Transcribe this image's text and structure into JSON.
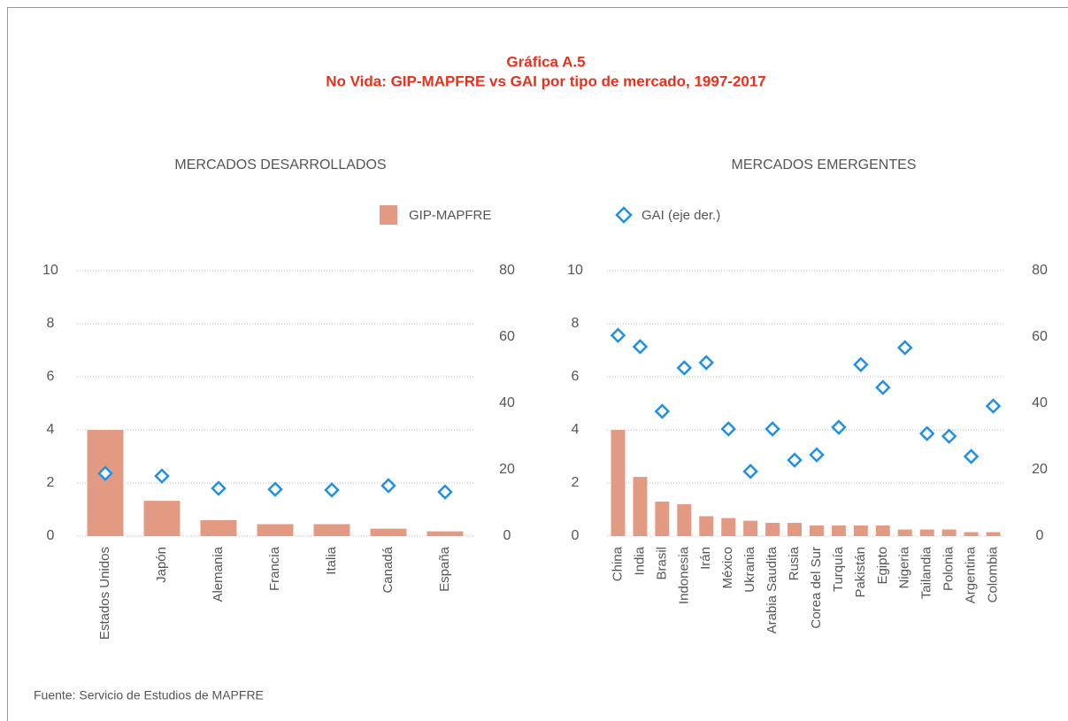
{
  "title": "Gráfica A.5",
  "subtitle": "No Vida: GIP-MAPFRE vs GAI por tipo de mercado, 1997-2017",
  "source": "Fuente: Servicio de Estudios de MAPFRE",
  "chart_data": [
    {
      "type": "bar",
      "title": "MERCADOS DESARROLLADOS",
      "categories": [
        "Estados Unidos",
        "Japón",
        "Alemania",
        "Francia",
        "Italia",
        "Canadá",
        "España"
      ],
      "series": [
        {
          "name": "GIP-MAPFRE",
          "color": "#e39a82",
          "values": [
            4.0,
            1.33,
            0.6,
            0.45,
            0.45,
            0.28,
            0.18
          ]
        },
        {
          "name": "GAI (eje der.)",
          "color": "#1e90e8",
          "axis": "y2",
          "values": [
            18.9,
            18.1,
            14.4,
            14.1,
            13.9,
            15.2,
            13.3
          ]
        }
      ],
      "ylim": [
        0,
        10
      ],
      "yticks": [
        0,
        2,
        4,
        6,
        8,
        10
      ],
      "y2lim": [
        0,
        80
      ],
      "y2ticks": [
        0,
        20,
        40,
        60,
        80
      ],
      "grid": true
    },
    {
      "type": "bar",
      "title": "MERCADOS EMERGENTES",
      "categories": [
        "China",
        "India",
        "Brasil",
        "Indonesia",
        "Irán",
        "México",
        "Ukrania",
        "Arabia Saudita",
        "Rusia",
        "Corea del Sur",
        "Turquía",
        "Pakistán",
        "Egipto",
        "Nigeria",
        "Tailandia",
        "Polonia",
        "Argentina",
        "Colombia"
      ],
      "series": [
        {
          "color": "#e39a82",
          "values": [
            4.0,
            2.23,
            1.3,
            1.2,
            0.75,
            0.68,
            0.58,
            0.5,
            0.5,
            0.4,
            0.4,
            0.4,
            0.4,
            0.25,
            0.25,
            0.25,
            0.15,
            0.15
          ]
        },
        {
          "color": "#1e90e8",
          "axis": "y2",
          "values": [
            60.5,
            57.1,
            37.6,
            50.7,
            52.3,
            32.3,
            19.5,
            32.3,
            22.9,
            24.5,
            32.8,
            51.7,
            44.8,
            56.8,
            30.9,
            30.1,
            24.0,
            39.2
          ]
        }
      ],
      "ylim": [
        0,
        10
      ],
      "yticks": [
        0,
        2,
        4,
        6,
        8,
        10
      ],
      "y2lim": [
        0,
        80
      ],
      "y2ticks": [
        0,
        20,
        40,
        60,
        80
      ],
      "grid": true
    }
  ]
}
